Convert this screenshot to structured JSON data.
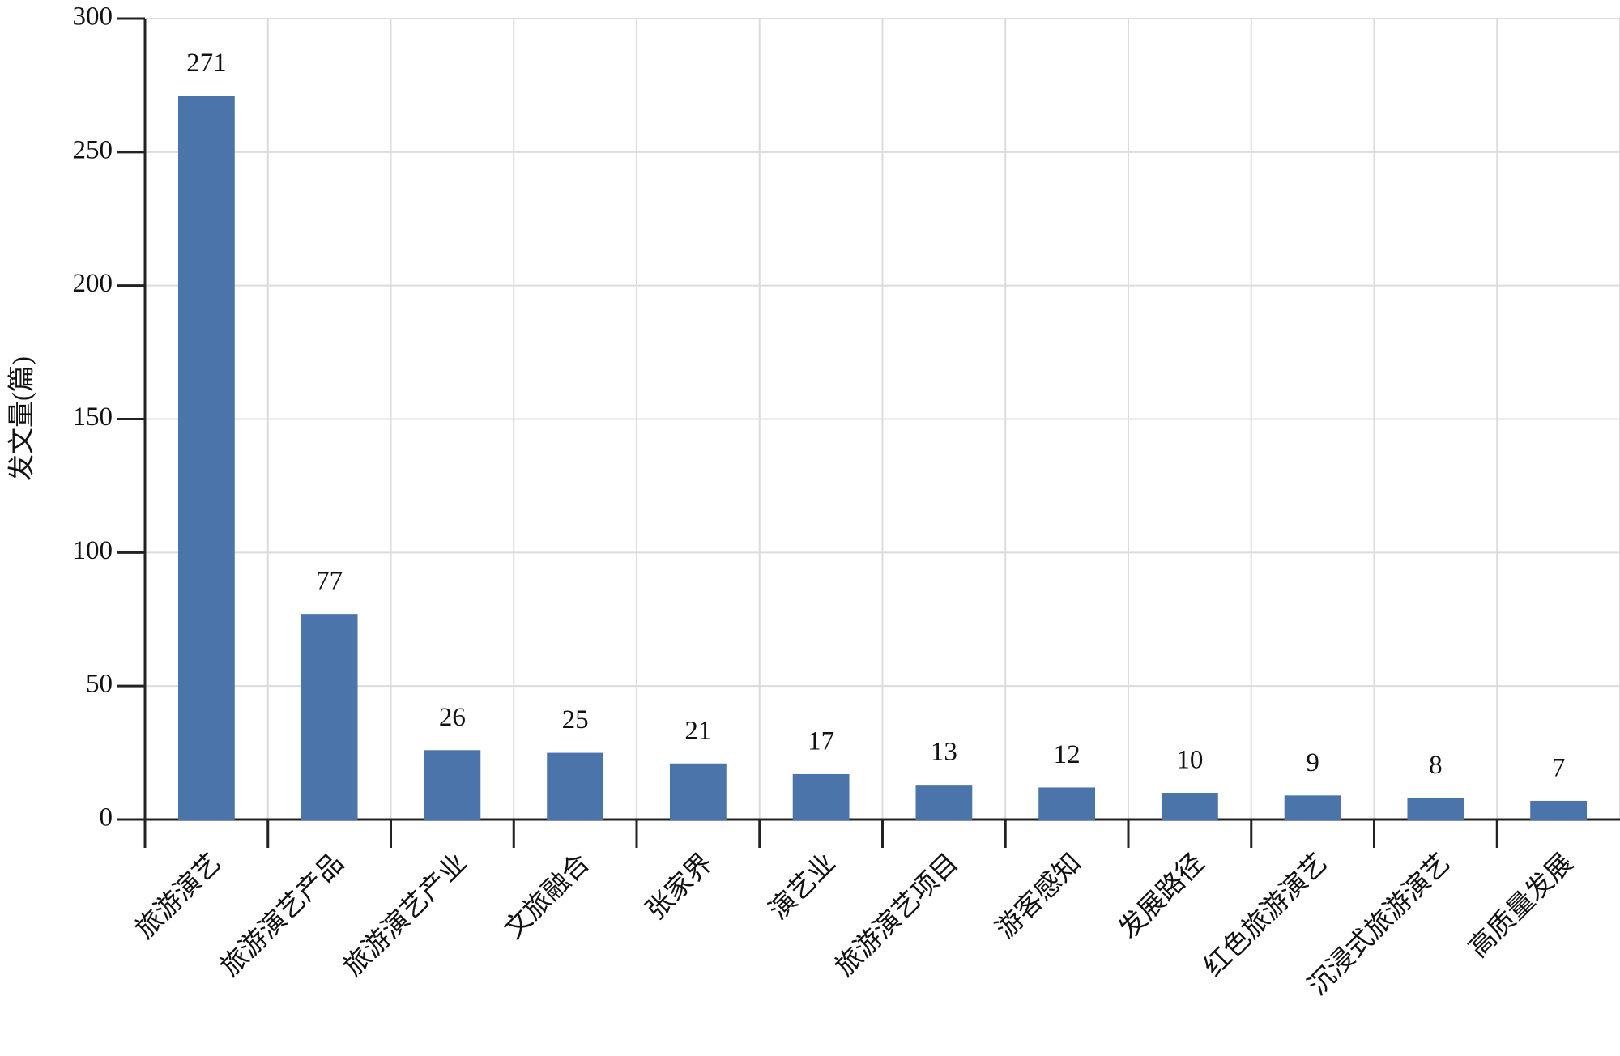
{
  "chart_data": {
    "type": "bar",
    "y_label": "发文量(篇)",
    "categories": [
      "旅游演艺",
      "旅游演艺产品",
      "旅游演艺产业",
      "文旅融合",
      "张家界",
      "演艺业",
      "旅游演艺项目",
      "游客感知",
      "发展路径",
      "红色旅游演艺",
      "沉浸式旅游演艺",
      "高质量发展"
    ],
    "values": [
      271,
      77,
      26,
      25,
      21,
      17,
      13,
      12,
      10,
      9,
      8,
      7
    ],
    "color": "#4a74aa",
    "ylim": [
      0,
      300
    ],
    "yticks": [
      0,
      50,
      100,
      150,
      200,
      250,
      300
    ],
    "grid": true
  }
}
